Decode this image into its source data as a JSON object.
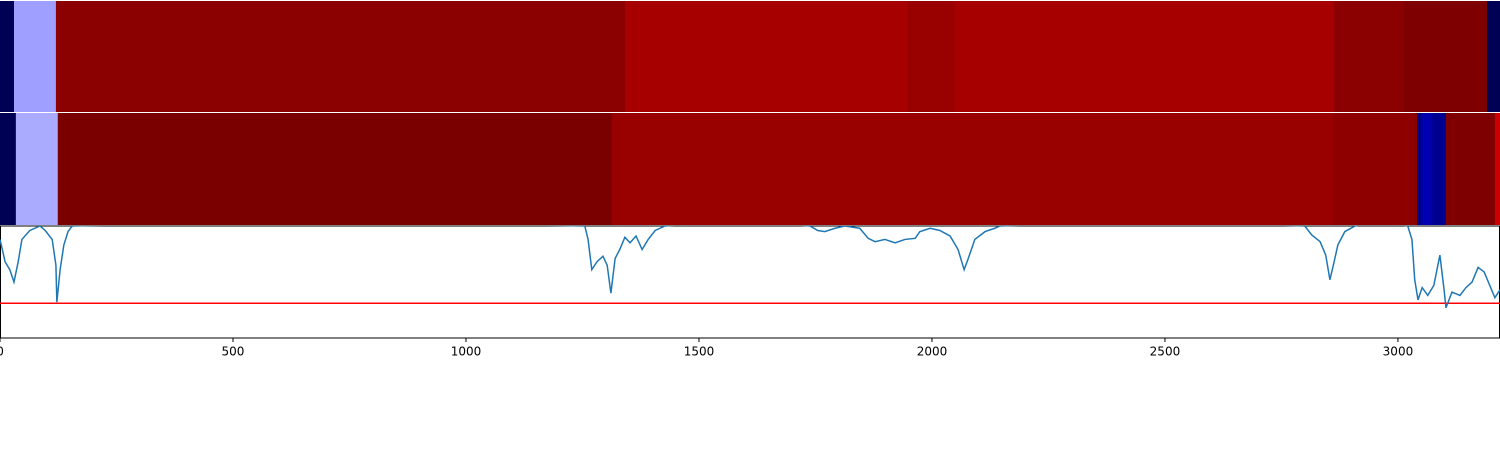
{
  "chart_data": [
    {
      "type": "heatmap",
      "xlim": [
        0,
        3219
      ],
      "edges": [
        0,
        30,
        120,
        1341,
        1948,
        2049,
        2863,
        3013,
        3191,
        3219
      ],
      "colors": [
        "#000055",
        "#9f9fff",
        "#8b0000",
        "#a60000",
        "#990000",
        "#a60000",
        "#8b0000",
        "#7f0000",
        "#000055"
      ]
    },
    {
      "type": "heatmap",
      "xlim": [
        0,
        3219
      ],
      "edges": [
        0,
        34,
        124,
        1313,
        2861,
        3041,
        3052,
        3073,
        3103,
        3208,
        3219
      ],
      "colors": [
        "#000055",
        "#aaaaff",
        "#7a0000",
        "#990000",
        "#8e0000",
        "#00008b",
        "#0000b0",
        "#000090",
        "#7f0000",
        "#cc0000"
      ]
    },
    {
      "type": "line",
      "xlim": [
        0,
        3219
      ],
      "ylim": [
        0,
        1
      ],
      "xticks": [
        0,
        500,
        1000,
        1500,
        2000,
        2500,
        3000
      ],
      "color": "#1f77b4",
      "threshold": {
        "value": 0.31,
        "color": "#ff0000"
      },
      "x": [
        0,
        11,
        21,
        30,
        39,
        47,
        64,
        86,
        97,
        112,
        120,
        122,
        129,
        137,
        146,
        155,
        644,
        1255,
        1262,
        1270,
        1281,
        1294,
        1303,
        1311,
        1320,
        1330,
        1341,
        1352,
        1365,
        1378,
        1391,
        1406,
        1427,
        1588,
        1738,
        1755,
        1770,
        1792,
        1813,
        1845,
        1863,
        1878,
        1899,
        1921,
        1942,
        1964,
        1974,
        1996,
        2017,
        2039,
        2056,
        2069,
        2077,
        2092,
        2114,
        2135,
        2146,
        2468,
        2800,
        2815,
        2833,
        2845,
        2854,
        2863,
        2871,
        2886,
        2908,
        2961,
        3021,
        3030,
        3036,
        3043,
        3052,
        3064,
        3077,
        3090,
        3099,
        3103,
        3116,
        3133,
        3146,
        3159,
        3172,
        3185,
        3197,
        3208,
        3219
      ],
      "values": [
        0.88,
        0.68,
        0.61,
        0.5,
        0.68,
        0.88,
        0.96,
        1.0,
        0.96,
        0.88,
        0.65,
        0.32,
        0.61,
        0.83,
        0.95,
        1.0,
        1.05,
        1.0,
        0.88,
        0.61,
        0.68,
        0.73,
        0.65,
        0.4,
        0.71,
        0.79,
        0.9,
        0.85,
        0.91,
        0.79,
        0.88,
        0.96,
        1.0,
        1.05,
        1.0,
        0.96,
        0.95,
        0.98,
        1.0,
        0.98,
        0.89,
        0.86,
        0.88,
        0.85,
        0.88,
        0.89,
        0.95,
        0.98,
        0.96,
        0.91,
        0.79,
        0.61,
        0.7,
        0.88,
        0.95,
        0.98,
        1.0,
        1.05,
        1.0,
        0.92,
        0.86,
        0.74,
        0.52,
        0.68,
        0.83,
        0.95,
        1.0,
        1.05,
        1.0,
        0.88,
        0.52,
        0.34,
        0.45,
        0.38,
        0.47,
        0.74,
        0.43,
        0.27,
        0.41,
        0.38,
        0.45,
        0.5,
        0.63,
        0.59,
        0.47,
        0.36,
        0.43
      ]
    }
  ]
}
